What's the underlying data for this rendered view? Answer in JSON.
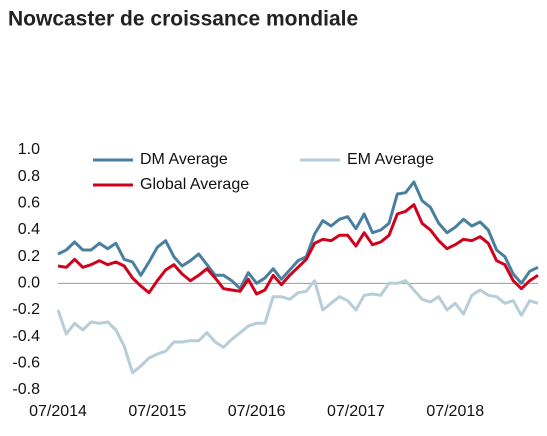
{
  "chart_data": {
    "type": "line",
    "title": "Nowcaster de croissance mondiale",
    "categories": [
      "07/2014",
      null,
      null,
      null,
      null,
      null,
      null,
      null,
      null,
      null,
      null,
      null,
      "07/2015",
      null,
      null,
      null,
      null,
      null,
      null,
      null,
      null,
      null,
      null,
      null,
      "07/2016",
      null,
      null,
      null,
      null,
      null,
      null,
      null,
      null,
      null,
      null,
      null,
      "07/2017",
      null,
      null,
      null,
      null,
      null,
      null,
      null,
      null,
      null,
      null,
      null,
      "07/2018",
      null,
      null,
      null,
      null,
      null,
      null,
      null,
      null,
      null,
      null
    ],
    "series": [
      {
        "name": "DM Average",
        "color": "#4a7fa0",
        "values": [
          0.22,
          0.25,
          0.31,
          0.25,
          0.25,
          0.3,
          0.26,
          0.3,
          0.18,
          0.16,
          0.06,
          0.16,
          0.27,
          0.32,
          0.2,
          0.13,
          0.17,
          0.22,
          0.14,
          0.06,
          0.06,
          0.02,
          -0.04,
          0.08,
          0.0,
          0.04,
          0.11,
          0.03,
          0.1,
          0.17,
          0.2,
          0.37,
          0.47,
          0.43,
          0.48,
          0.5,
          0.41,
          0.52,
          0.38,
          0.4,
          0.45,
          0.67,
          0.68,
          0.76,
          0.62,
          0.57,
          0.45,
          0.38,
          0.42,
          0.48,
          0.43,
          0.46,
          0.4,
          0.25,
          0.2,
          0.07,
          0.0,
          0.09,
          0.12
        ]
      },
      {
        "name": "EM Average",
        "color": "#b7cdd8",
        "values": [
          -0.2,
          -0.38,
          -0.3,
          -0.35,
          -0.29,
          -0.3,
          -0.29,
          -0.35,
          -0.47,
          -0.67,
          -0.62,
          -0.56,
          -0.53,
          -0.51,
          -0.44,
          -0.44,
          -0.43,
          -0.43,
          -0.37,
          -0.44,
          -0.48,
          -0.42,
          -0.37,
          -0.32,
          -0.3,
          -0.3,
          -0.1,
          -0.1,
          -0.12,
          -0.07,
          -0.06,
          0.02,
          -0.2,
          -0.15,
          -0.1,
          -0.13,
          -0.2,
          -0.09,
          -0.08,
          -0.09,
          0.0,
          0.0,
          0.02,
          -0.05,
          -0.12,
          -0.14,
          -0.1,
          -0.2,
          -0.15,
          -0.23,
          -0.09,
          -0.05,
          -0.09,
          -0.1,
          -0.15,
          -0.13,
          -0.24,
          -0.13,
          -0.15
        ]
      },
      {
        "name": "Global Average",
        "color": "#d0021b",
        "values": [
          0.13,
          0.12,
          0.18,
          0.12,
          0.14,
          0.17,
          0.14,
          0.16,
          0.13,
          0.04,
          -0.02,
          -0.07,
          0.02,
          0.1,
          0.14,
          0.07,
          0.02,
          0.06,
          0.11,
          0.04,
          -0.04,
          -0.05,
          -0.06,
          0.03,
          -0.08,
          -0.05,
          0.06,
          -0.01,
          0.06,
          0.12,
          0.18,
          0.3,
          0.33,
          0.32,
          0.36,
          0.36,
          0.28,
          0.38,
          0.29,
          0.31,
          0.36,
          0.52,
          0.54,
          0.59,
          0.45,
          0.4,
          0.32,
          0.26,
          0.29,
          0.33,
          0.32,
          0.35,
          0.3,
          0.17,
          0.14,
          0.02,
          -0.04,
          0.02,
          0.06
        ]
      }
    ],
    "ylim": [
      -0.8,
      1.0
    ],
    "yticks": [
      {
        "value": 1.0,
        "label": "1.0"
      },
      {
        "value": 0.8,
        "label": "0.8"
      },
      {
        "value": 0.6,
        "label": "0.6"
      },
      {
        "value": 0.4,
        "label": "0.4"
      },
      {
        "value": 0.2,
        "label": "0.2"
      },
      {
        "value": 0,
        "label": "0.0"
      },
      {
        "value": -0.2,
        "label": "-0.2"
      },
      {
        "value": -0.4,
        "label": "-0.4"
      },
      {
        "value": -0.6,
        "label": "-0.6"
      },
      {
        "value": -0.8,
        "label": "-0.8"
      }
    ]
  }
}
